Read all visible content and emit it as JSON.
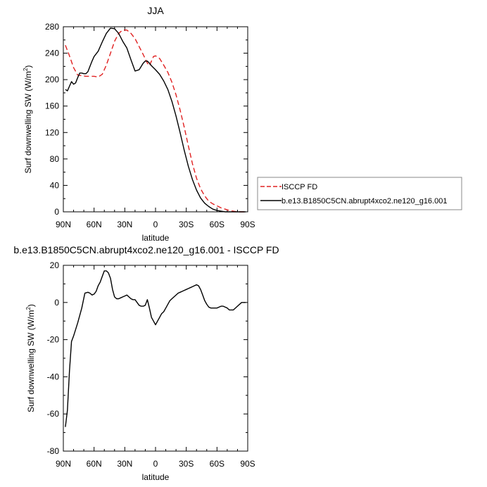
{
  "chart_data": [
    {
      "type": "line",
      "title": "JJA",
      "xlabel": "latitude",
      "ylabel": "Surf downwelling SW (W/m",
      "ylabel_sup": "2",
      "ylabel_end": ")",
      "xlim": [
        90,
        -90
      ],
      "ylim": [
        0,
        280
      ],
      "x_ticks": [
        90,
        60,
        30,
        0,
        -30,
        -60,
        -90
      ],
      "x_tick_labels": [
        "90N",
        "60N",
        "30N",
        "0",
        "30S",
        "60S",
        "90S"
      ],
      "y_ticks": [
        0,
        40,
        80,
        120,
        160,
        200,
        240,
        280
      ],
      "y_tick_labels": [
        "0",
        "40",
        "80",
        "120",
        "160",
        "200",
        "240",
        "280"
      ],
      "legend_position": "right",
      "series": [
        {
          "name": "ISCCP FD",
          "color": "#e02020",
          "dash": true,
          "x": [
            88,
            84,
            80,
            76,
            72,
            68,
            64,
            60,
            56,
            52,
            48,
            44,
            40,
            36,
            32,
            28,
            24,
            20,
            16,
            12,
            8,
            6,
            4,
            2,
            0,
            -4,
            -8,
            -12,
            -16,
            -20,
            -24,
            -28,
            -32,
            -36,
            -40,
            -44,
            -48,
            -52,
            -56,
            -60,
            -64,
            -68,
            -72,
            -76,
            -80,
            -84,
            -88
          ],
          "values": [
            252,
            236,
            218,
            207,
            206,
            205,
            205,
            205,
            204,
            208,
            222,
            240,
            258,
            270,
            275,
            275,
            270,
            262,
            250,
            238,
            225,
            221,
            228,
            235,
            236,
            232,
            222,
            211,
            196,
            177,
            154,
            128,
            100,
            73,
            51,
            35,
            24,
            16,
            12,
            9,
            6,
            4,
            2,
            1,
            0,
            0,
            0
          ]
        },
        {
          "name": "b.e13.B1850C5CN.abrupt4xco2.ne120_g16.001",
          "color": "#000000",
          "dash": false,
          "x": [
            88,
            86,
            84,
            82,
            80,
            78,
            76,
            74,
            72,
            70,
            68,
            66,
            64,
            62,
            60,
            56,
            52,
            48,
            44,
            40,
            36,
            32,
            28,
            24,
            20,
            16,
            12,
            10,
            8,
            6,
            4,
            2,
            0,
            -4,
            -8,
            -12,
            -16,
            -20,
            -24,
            -28,
            -32,
            -36,
            -40,
            -44,
            -48,
            -52,
            -56,
            -60,
            -64,
            -68,
            -72,
            -76,
            -80,
            -84,
            -88
          ],
          "values": [
            185,
            183,
            190,
            197,
            193,
            195,
            203,
            210,
            210,
            209,
            209,
            212,
            220,
            228,
            235,
            243,
            257,
            270,
            278,
            277,
            270,
            258,
            248,
            230,
            213,
            215,
            225,
            228,
            228,
            225,
            221,
            218,
            215,
            208,
            198,
            185,
            167,
            145,
            120,
            93,
            69,
            49,
            33,
            21,
            13,
            8,
            4,
            2,
            1,
            0,
            0,
            0,
            0,
            0,
            0
          ]
        }
      ]
    },
    {
      "type": "line",
      "title": "b.e13.B1850C5CN.abrupt4xco2.ne120_g16.001 - ISCCP FD",
      "xlabel": "latitude",
      "ylabel": "Surf downwelling SW (W/m",
      "ylabel_sup": "2",
      "ylabel_end": ")",
      "xlim": [
        90,
        -90
      ],
      "ylim": [
        -80,
        20
      ],
      "x_ticks": [
        90,
        60,
        30,
        0,
        -30,
        -60,
        -90
      ],
      "x_tick_labels": [
        "90N",
        "60N",
        "30N",
        "0",
        "30S",
        "60S",
        "90S"
      ],
      "y_ticks": [
        -80,
        -60,
        -40,
        -20,
        0,
        20
      ],
      "y_tick_labels": [
        "-80",
        "-60",
        "-40",
        "-20",
        "0",
        "20"
      ],
      "series": [
        {
          "color": "#000000",
          "dash": false,
          "x": [
            88,
            86,
            84,
            82,
            80,
            76,
            72,
            69,
            66,
            64,
            62,
            60,
            58,
            56,
            54,
            52,
            50,
            48,
            46,
            44,
            42,
            40,
            38,
            36,
            34,
            32,
            30,
            28,
            26,
            24,
            22,
            20,
            18,
            16,
            14,
            12,
            10,
            8,
            6,
            4,
            2,
            0,
            -2,
            -4,
            -6,
            -8,
            -10,
            -12,
            -14,
            -16,
            -18,
            -20,
            -22,
            -24,
            -26,
            -28,
            -30,
            -32,
            -34,
            -36,
            -38,
            -40,
            -42,
            -44,
            -46,
            -48,
            -50,
            -52,
            -54,
            -56,
            -58,
            -60,
            -62,
            -64,
            -66,
            -68,
            -70,
            -72,
            -76,
            -80,
            -84,
            -88
          ],
          "values": [
            -67,
            -58,
            -37,
            -21,
            -18,
            -11,
            -3,
            5,
            5.5,
            5,
            4,
            4.5,
            6,
            9,
            11,
            14,
            17,
            17,
            16,
            13,
            7,
            3,
            2,
            2,
            2.5,
            3,
            3.5,
            4,
            3,
            2,
            1.5,
            1.5,
            0,
            -1.5,
            -2,
            -2,
            -1.5,
            1.5,
            -3,
            -8,
            -10,
            -12,
            -10,
            -8,
            -6,
            -5,
            -3,
            -1,
            1,
            2,
            3,
            4,
            5,
            5.5,
            6,
            6.5,
            7,
            7.5,
            8,
            8.5,
            9,
            9.5,
            9,
            7,
            4,
            1,
            -1,
            -2.5,
            -3,
            -3,
            -3,
            -3,
            -2.5,
            -2,
            -2,
            -2.5,
            -3,
            -4,
            -4,
            -2,
            0,
            0
          ]
        }
      ]
    }
  ]
}
